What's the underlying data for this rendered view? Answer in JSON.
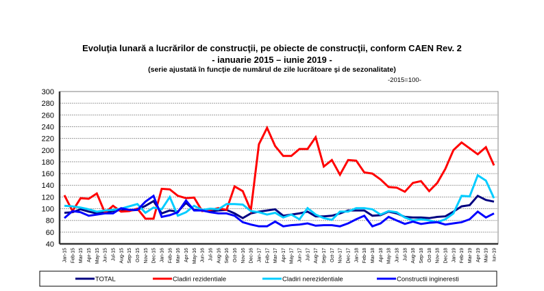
{
  "chart_data": {
    "type": "line",
    "title": "Evoluţia lunară a lucrărilor de construcţii, pe obiecte de construcţii, conform CAEN Rev. 2",
    "subtitle": "- ianuarie 2015 – iunie 2019 -",
    "note": "(serie ajustată în funcţie de numărul de zile lucrătoare şi de sezonalitate)",
    "base": "-2015=100-",
    "xlabel": "",
    "ylabel": "",
    "ylim": [
      40,
      300
    ],
    "yticks": [
      40,
      60,
      80,
      100,
      120,
      140,
      160,
      180,
      200,
      220,
      240,
      260,
      280,
      300
    ],
    "grid": true,
    "legend_position": "bottom",
    "categories": [
      "Jan-15",
      "Feb-15",
      "Mar-15",
      "Apr-15",
      "May-15",
      "Jun-15",
      "Jul-15",
      "Aug-15",
      "Sep-15",
      "Oct-15",
      "Nov-15",
      "Dec-15",
      "Jan-16",
      "Feb-16",
      "Mar-16",
      "Apr-16",
      "May-16",
      "Jun-16",
      "Jul-16",
      "Aug-16",
      "Sep-16",
      "Oct-16",
      "Nov-16",
      "Dec-16",
      "Jan-17",
      "Feb-17",
      "Mar-17",
      "Apr-17",
      "May-17",
      "Jun-17",
      "Jul-17",
      "Aug-17",
      "Sep-17",
      "Oct-17",
      "Nov-17",
      "Dec-17",
      "Jan-18",
      "Feb-18",
      "Mar-18",
      "Apr-18",
      "May-18",
      "Jun-18",
      "Jul-18",
      "Aug-18",
      "Sep-18",
      "Oct-18",
      "Nov-18",
      "Dec-18",
      "Jan-19",
      "Feb-19",
      "Mar-19",
      "Apr-19",
      "Mai-19",
      "Iun-19"
    ],
    "series": [
      {
        "name": "TOTAL",
        "color": "#000080",
        "values": [
          93,
          94,
          99,
          95,
          92,
          94,
          96,
          98,
          97,
          98,
          105,
          113,
          92,
          97,
          95,
          110,
          98,
          97,
          96,
          97,
          98,
          92,
          84,
          92,
          95,
          97,
          99,
          88,
          90,
          92,
          95,
          87,
          87,
          88,
          92,
          97,
          97,
          97,
          88,
          89,
          95,
          92,
          86,
          85,
          85,
          84,
          86,
          87,
          95,
          104,
          106,
          122,
          115,
          112
        ]
      },
      {
        "name": "Cladiri rezidentiale",
        "color": "#ff0000",
        "values": [
          123,
          96,
          118,
          117,
          126,
          93,
          105,
          95,
          96,
          100,
          83,
          83,
          134,
          133,
          122,
          118,
          119,
          96,
          98,
          101,
          98,
          138,
          130,
          97,
          210,
          238,
          207,
          190,
          190,
          202,
          202,
          222,
          172,
          183,
          158,
          183,
          182,
          162,
          160,
          150,
          137,
          136,
          129,
          144,
          147,
          130,
          144,
          168,
          200,
          213,
          203,
          193,
          205,
          174
        ]
      },
      {
        "name": "Cladiri nerezidentiale",
        "color": "#00ccff",
        "values": [
          105,
          104,
          102,
          99,
          95,
          97,
          98,
          100,
          104,
          108,
          93,
          102,
          99,
          120,
          88,
          94,
          105,
          98,
          100,
          99,
          108,
          108,
          107,
          96,
          94,
          90,
          93,
          85,
          90,
          82,
          101,
          90,
          84,
          81,
          95,
          95,
          101,
          101,
          99,
          90,
          96,
          94,
          85,
          80,
          82,
          80,
          77,
          82,
          92,
          122,
          121,
          157,
          148,
          118
        ]
      },
      {
        "name": "Constructii ingineresti",
        "color": "#0000ff",
        "values": [
          84,
          96,
          94,
          88,
          90,
          92,
          92,
          101,
          98,
          98,
          112,
          122,
          86,
          89,
          94,
          114,
          97,
          97,
          94,
          92,
          92,
          88,
          77,
          73,
          70,
          70,
          78,
          70,
          72,
          73,
          75,
          71,
          72,
          72,
          70,
          75,
          82,
          88,
          70,
          75,
          86,
          80,
          74,
          78,
          74,
          76,
          77,
          73,
          75,
          77,
          82,
          95,
          85,
          92
        ]
      }
    ]
  },
  "header": {
    "title": "Evoluţia lunară a lucrărilor de construcţii, pe obiecte de construcţii, conform CAEN Rev. 2",
    "subtitle": "- ianuarie 2015 – iunie 2019 -",
    "note": "(serie ajustată în funcţie de numărul de zile lucrătoare şi de sezonalitate)",
    "base": "-2015=100-"
  }
}
